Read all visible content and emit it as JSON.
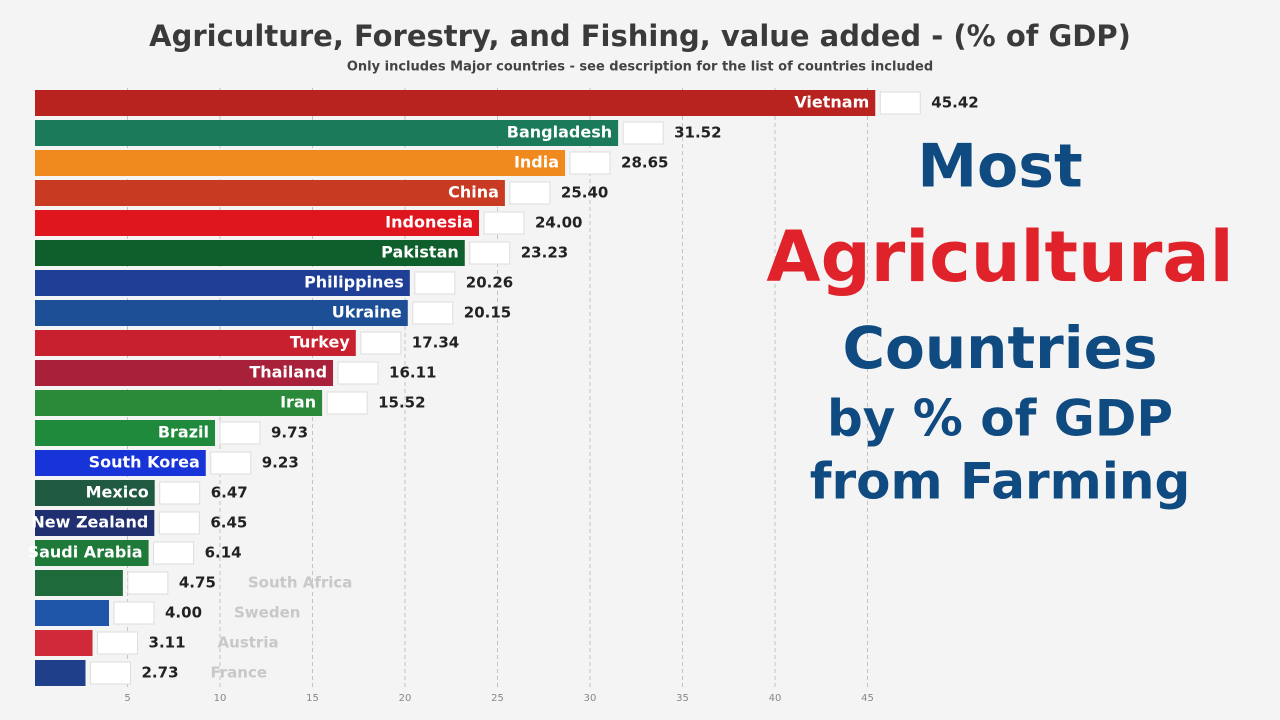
{
  "chart_data": {
    "type": "bar",
    "orientation": "horizontal",
    "title": "Agriculture, Forestry, and Fishing, value added  -  (% of GDP)",
    "subtitle": "Only includes Major countries - see description for the list of countries included",
    "categories": [
      "Vietnam",
      "Bangladesh",
      "India",
      "China",
      "Indonesia",
      "Pakistan",
      "Philippines",
      "Ukraine",
      "Turkey",
      "Thailand",
      "Iran",
      "Brazil",
      "South Korea",
      "Mexico",
      "New Zealand",
      "Saudi Arabia",
      "South Africa",
      "Sweden",
      "Austria",
      "France"
    ],
    "values": [
      45.42,
      31.52,
      28.65,
      25.4,
      24.0,
      23.23,
      20.26,
      20.15,
      17.34,
      16.11,
      15.52,
      9.73,
      9.23,
      6.47,
      6.45,
      6.14,
      4.75,
      4.0,
      3.11,
      2.73
    ],
    "value_labels": [
      "45.42",
      "31.52",
      "28.65",
      "25.40",
      "24.00",
      "23.23",
      "20.26",
      "20.15",
      "17.34",
      "16.11",
      "15.52",
      "9.73",
      "9.23",
      "6.47",
      "6.45",
      "6.14",
      "4.75",
      "4.00",
      "3.11",
      "2.73"
    ],
    "colors": [
      "#b8231f",
      "#1a7a5a",
      "#f08a1e",
      "#c83a22",
      "#e0161e",
      "#0f5f2c",
      "#1f3f96",
      "#1d4f96",
      "#c8202e",
      "#a8203a",
      "#2a8a3a",
      "#1f8a3c",
      "#1734d8",
      "#1f5a40",
      "#1f2f70",
      "#1f7a3a",
      "#1f6a3a",
      "#1f55a8",
      "#d02a3a",
      "#1f3f8a"
    ],
    "xlim": [
      0,
      60
    ],
    "xticks": [
      5,
      10,
      15,
      20,
      25,
      30,
      35,
      40,
      45
    ],
    "grid": true
  },
  "headline": [
    "Most",
    "Agricultural",
    "Countries",
    "by % of GDP",
    "from Farming"
  ]
}
